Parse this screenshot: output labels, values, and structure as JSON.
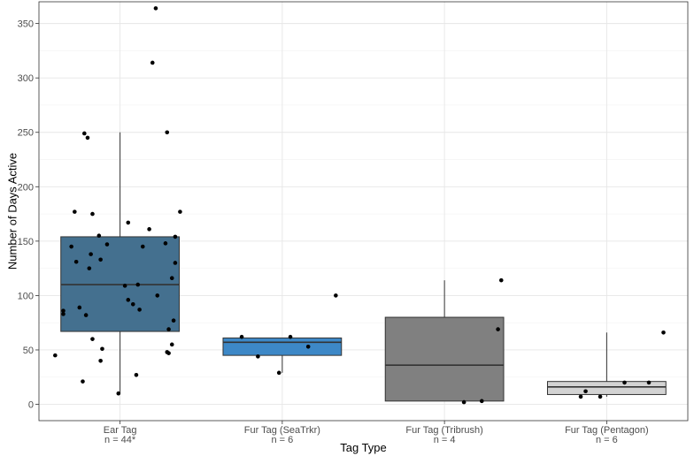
{
  "chart_data": {
    "type": "box",
    "title": "",
    "xlabel": "Tag Type",
    "ylabel": "Number of Days Active",
    "ylim": [
      -15,
      370
    ],
    "yticks": [
      0,
      50,
      100,
      150,
      200,
      250,
      300,
      350
    ],
    "categories": [
      {
        "name": "Ear Tag",
        "n_label": "n = 44*",
        "color": "#44708f",
        "stats": {
          "min": 10,
          "q1": 67,
          "median": 110,
          "q3": 154,
          "max": 250
        },
        "points": [
          [
            0.22,
            364
          ],
          [
            0.2,
            314
          ],
          [
            0.29,
            250
          ],
          [
            -0.22,
            249
          ],
          [
            -0.2,
            245
          ],
          [
            0.37,
            177
          ],
          [
            -0.28,
            177
          ],
          [
            -0.17,
            175
          ],
          [
            0.05,
            167
          ],
          [
            0.18,
            161
          ],
          [
            0.34,
            154
          ],
          [
            -0.13,
            155
          ],
          [
            -0.3,
            145
          ],
          [
            -0.08,
            147
          ],
          [
            0.14,
            145
          ],
          [
            0.28,
            148
          ],
          [
            -0.18,
            138
          ],
          [
            -0.12,
            133
          ],
          [
            -0.27,
            131
          ],
          [
            -0.19,
            125
          ],
          [
            0.34,
            130
          ],
          [
            0.32,
            116
          ],
          [
            0.11,
            110
          ],
          [
            0.23,
            100
          ],
          [
            0.03,
            109
          ],
          [
            -0.35,
            86
          ],
          [
            -0.35,
            83
          ],
          [
            -0.25,
            89
          ],
          [
            -0.21,
            82
          ],
          [
            0.05,
            96
          ],
          [
            0.08,
            92
          ],
          [
            0.12,
            87
          ],
          [
            0.33,
            77
          ],
          [
            0.3,
            69
          ],
          [
            -0.17,
            60
          ],
          [
            0.32,
            55
          ],
          [
            -0.11,
            51
          ],
          [
            0.29,
            48
          ],
          [
            0.3,
            47
          ],
          [
            -0.4,
            45
          ],
          [
            -0.12,
            40
          ],
          [
            -0.23,
            21
          ],
          [
            0.1,
            27
          ],
          [
            -0.01,
            10
          ]
        ]
      },
      {
        "name": "Fur Tag (SeaTrkr)",
        "n_label": "n = 6",
        "color": "#3d88c7",
        "stats": {
          "min": 29,
          "q1": 45,
          "median": 57,
          "q3": 61,
          "max": 61
        },
        "points": [
          [
            -0.25,
            62
          ],
          [
            0.05,
            62
          ],
          [
            0.33,
            100
          ],
          [
            0.16,
            53
          ],
          [
            -0.15,
            44
          ],
          [
            -0.02,
            29
          ]
        ]
      },
      {
        "name": "Fur Tag (Tribrush)",
        "n_label": "n = 4",
        "color": "#808080",
        "stats": {
          "min": 3,
          "q1": 3,
          "median": 36,
          "q3": 80,
          "max": 114
        },
        "points": [
          [
            0.35,
            114
          ],
          [
            0.33,
            69
          ],
          [
            0.23,
            3
          ],
          [
            0.12,
            2
          ]
        ]
      },
      {
        "name": "Fur Tag (Pentagon)",
        "n_label": "n = 6",
        "color": "#d3d3d3",
        "stats": {
          "min": 7,
          "q1": 9,
          "median": 16,
          "q3": 21,
          "max": 66
        },
        "points": [
          [
            0.35,
            66
          ],
          [
            0.11,
            20
          ],
          [
            0.26,
            20
          ],
          [
            -0.13,
            12
          ],
          [
            -0.16,
            7
          ],
          [
            -0.04,
            7
          ]
        ]
      }
    ]
  }
}
